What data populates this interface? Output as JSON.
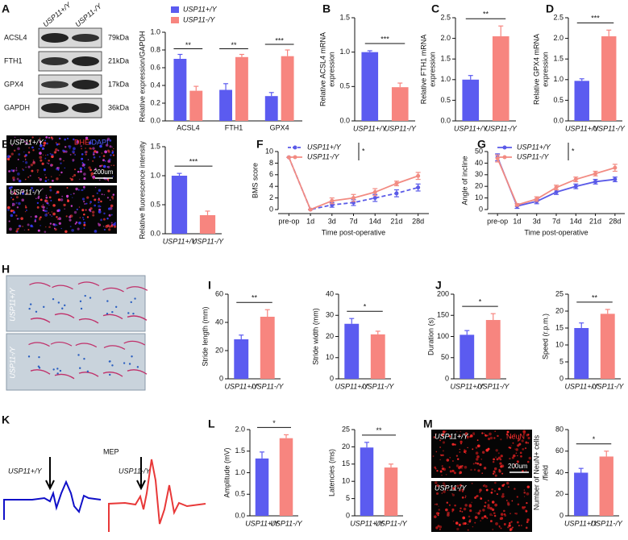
{
  "figure": {
    "panel_labels": [
      "A",
      "B",
      "C",
      "D",
      "E",
      "F",
      "G",
      "H",
      "I",
      "J",
      "K",
      "L",
      "M"
    ],
    "genotypes": [
      "USP11+/Y",
      "USP11-/Y"
    ],
    "blot": {
      "proteins": [
        "ACSL4",
        "FTH1",
        "GPX4",
        "GAPDH"
      ],
      "sizes": [
        "79kDa",
        "21kDa",
        "17kDa",
        "36kDa"
      ]
    },
    "fluorescence": {
      "stain": [
        "DHE",
        "/DAPI"
      ],
      "scale": "200um"
    },
    "neun": {
      "stain": "NeuN",
      "scale": "200um"
    },
    "mep": {
      "title": "MEP"
    }
  },
  "chart_data": [
    {
      "type": "grouped-bar",
      "categories": [
        "ACSL4",
        "FTH1",
        "GPX4"
      ],
      "ylabel": [
        "Relative expression/GAPDH"
      ],
      "series": [
        {
          "name": "USP11+/Y",
          "color": "#5b5bf0",
          "values": [
            0.7,
            0.35,
            0.28
          ],
          "errors": [
            0.05,
            0.07,
            0.04
          ]
        },
        {
          "name": "USP11-/Y",
          "color": "#f7857f",
          "values": [
            0.34,
            0.72,
            0.73
          ],
          "errors": [
            0.05,
            0.03,
            0.07
          ]
        }
      ],
      "significance": [
        "**",
        "**",
        "***"
      ],
      "ylim": [
        0,
        1
      ],
      "yticks": [
        {
          "value": 0,
          "label": "0.0"
        },
        0.2,
        0.4,
        0.6,
        0.8,
        {
          "value": 1,
          "label": "1.0"
        }
      ],
      "legend": "top-left"
    },
    {
      "type": "bar",
      "categories": [
        "USP11+/Y",
        "USP11-/Y"
      ],
      "colors": [
        "#5b5bf0",
        "#f7857f"
      ],
      "values": [
        1.0,
        0.49
      ],
      "errors": [
        0.02,
        0.06
      ],
      "ylabel": [
        "Relative ACSL4 mRNA",
        "expression"
      ],
      "significance": "***",
      "ylim": [
        0,
        1.5
      ],
      "yticks": [
        {
          "value": 0,
          "label": "0.0"
        },
        0.5,
        {
          "value": 1,
          "label": "1.0"
        },
        1.5
      ]
    },
    {
      "type": "bar",
      "categories": [
        "USP11+/Y",
        "USP11-/Y"
      ],
      "colors": [
        "#5b5bf0",
        "#f7857f"
      ],
      "values": [
        1.0,
        2.05
      ],
      "errors": [
        0.1,
        0.25
      ],
      "ylabel": [
        "Relative FTH1 mRNA",
        "expression"
      ],
      "significance": "**",
      "ylim": [
        0,
        2.5
      ],
      "yticks": [
        {
          "value": 0,
          "label": "0.0"
        },
        0.5,
        {
          "value": 1,
          "label": "1.0"
        },
        1.5,
        {
          "value": 2,
          "label": "2.0"
        },
        2.5
      ]
    },
    {
      "type": "bar",
      "categories": [
        "USP11+/Y",
        "USP11-/Y"
      ],
      "colors": [
        "#5b5bf0",
        "#f7857f"
      ],
      "values": [
        0.97,
        2.05
      ],
      "errors": [
        0.05,
        0.15
      ],
      "ylabel": [
        "Relative GPX4 mRNA",
        "expression"
      ],
      "significance": "***",
      "ylim": [
        0,
        2.5
      ],
      "yticks": [
        {
          "value": 0,
          "label": "0.0"
        },
        0.5,
        {
          "value": 1,
          "label": "1.0"
        },
        1.5,
        {
          "value": 2,
          "label": "2.0"
        },
        2.5
      ]
    },
    {
      "type": "bar",
      "categories": [
        "USP11+/Y",
        "USP11-/Y"
      ],
      "colors": [
        "#5b5bf0",
        "#f7857f"
      ],
      "values": [
        1.0,
        0.32
      ],
      "errors": [
        0.04,
        0.07
      ],
      "ylabel": [
        "Relative fluorescence intensity"
      ],
      "significance": "***",
      "ylim": [
        0,
        1.5
      ],
      "yticks": [
        {
          "value": 0,
          "label": "0.0"
        },
        0.5,
        {
          "value": 1,
          "label": "1.0"
        },
        1.5
      ]
    },
    {
      "type": "line",
      "categories": [
        "pre-op",
        "1d",
        "3d",
        "7d",
        "14d",
        "21d",
        "28d"
      ],
      "ylabel": [
        "BMS score"
      ],
      "xlabel": "Time post-operative",
      "series": [
        {
          "name": "USP11+/Y",
          "color": "#5a5ae8",
          "line_style": "dashed",
          "values": [
            9,
            0,
            0.8,
            1.2,
            2.0,
            2.8,
            3.8
          ],
          "errors": [
            0,
            0,
            0.4,
            0.5,
            0.6,
            0.6,
            0.6
          ]
        },
        {
          "name": "USP11-/Y",
          "color": "#f28b82",
          "line_style": "solid",
          "values": [
            9,
            0,
            1.5,
            2.0,
            3.0,
            4.5,
            5.8
          ],
          "errors": [
            0,
            0,
            0.5,
            0.6,
            0.6,
            0.4,
            0.6
          ]
        }
      ],
      "significance": "*",
      "ylim": [
        0,
        10
      ],
      "yticks": [
        0,
        2,
        4,
        6,
        8,
        10
      ]
    },
    {
      "type": "line",
      "categories": [
        "pre-op",
        "1d",
        "3d",
        "7d",
        "14d",
        "21d",
        "28d"
      ],
      "ylabel": [
        "Angle of incline"
      ],
      "xlabel": "Time post-operative",
      "series": [
        {
          "name": "USP11+/Y",
          "color": "#5a5ae8",
          "line_style": "solid",
          "values": [
            45,
            3,
            7,
            15,
            20,
            24,
            26
          ],
          "errors": [
            3,
            2,
            2,
            2,
            2,
            2,
            2
          ]
        },
        {
          "name": "USP11-/Y",
          "color": "#f28b82",
          "line_style": "solid",
          "values": [
            44,
            4,
            9,
            19,
            26,
            31,
            36
          ],
          "errors": [
            3,
            1,
            2,
            2,
            2,
            2,
            3
          ]
        }
      ],
      "significance": "*",
      "ylim": [
        0,
        50
      ],
      "yticks": [
        0,
        10,
        20,
        30,
        40,
        50
      ]
    },
    {
      "type": "bar",
      "categories": [
        "USP11+/Y",
        "USP11-/Y"
      ],
      "colors": [
        "#5b5bf0",
        "#f7857f"
      ],
      "values": [
        28,
        44
      ],
      "errors": [
        3,
        5
      ],
      "ylabel": [
        "Stride length (mm)"
      ],
      "significance": "**",
      "ylim": [
        0,
        60
      ],
      "yticks": [
        0,
        20,
        40,
        60
      ]
    },
    {
      "type": "bar",
      "categories": [
        "USP11+/Y",
        "USP11-/Y"
      ],
      "colors": [
        "#5b5bf0",
        "#f7857f"
      ],
      "values": [
        26,
        21
      ],
      "errors": [
        2.5,
        1.5
      ],
      "ylabel": [
        "Stride width (mm)"
      ],
      "significance": "*",
      "ylim": [
        0,
        40
      ],
      "yticks": [
        0,
        10,
        20,
        30,
        40
      ]
    },
    {
      "type": "bar",
      "categories": [
        "USP11+/Y",
        "USP11-/Y"
      ],
      "colors": [
        "#5b5bf0",
        "#f7857f"
      ],
      "values": [
        104,
        139
      ],
      "errors": [
        10,
        15
      ],
      "ylabel": [
        "Duration (s)"
      ],
      "significance": "*",
      "ylim": [
        0,
        200
      ],
      "yticks": [
        0,
        50,
        100,
        150,
        200
      ]
    },
    {
      "type": "bar",
      "categories": [
        "USP11+/Y",
        "USP11-/Y"
      ],
      "colors": [
        "#5b5bf0",
        "#f7857f"
      ],
      "values": [
        15,
        19.2
      ],
      "errors": [
        1.5,
        1.3
      ],
      "ylabel": [
        "Speed (r.p.m.)"
      ],
      "significance": "**",
      "ylim": [
        0,
        25
      ],
      "yticks": [
        0,
        5,
        10,
        15,
        20,
        25
      ]
    },
    {
      "type": "bar",
      "categories": [
        "USP11+/Y",
        "USP11-/Y"
      ],
      "colors": [
        "#5b5bf0",
        "#f7857f"
      ],
      "values": [
        1.33,
        1.8
      ],
      "errors": [
        0.15,
        0.08
      ],
      "ylabel": [
        "Amplitude (mV)"
      ],
      "significance": "*",
      "ylim": [
        0,
        2
      ],
      "yticks": [
        {
          "value": 0,
          "label": "0.0"
        },
        0.5,
        {
          "value": 1,
          "label": "1.0"
        },
        1.5,
        {
          "value": 2,
          "label": "2.0"
        }
      ]
    },
    {
      "type": "bar",
      "categories": [
        "USP11+/Y",
        "USP11-/Y"
      ],
      "colors": [
        "#5b5bf0",
        "#f7857f"
      ],
      "values": [
        19.8,
        14
      ],
      "errors": [
        1.5,
        1
      ],
      "ylabel": [
        "Latencies (ms)"
      ],
      "significance": "**",
      "ylim": [
        0,
        25
      ],
      "yticks": [
        0,
        5,
        10,
        15,
        20,
        25
      ]
    },
    {
      "type": "bar",
      "categories": [
        "USP11+/Y",
        "USP11-/Y"
      ],
      "colors": [
        "#5b5bf0",
        "#f7857f"
      ],
      "values": [
        40,
        55
      ],
      "errors": [
        4,
        5
      ],
      "ylabel": [
        "Number of NeuN+ cells",
        "/field"
      ],
      "significance": "*",
      "ylim": [
        0,
        80
      ],
      "yticks": [
        0,
        20,
        40,
        60,
        80
      ]
    }
  ]
}
